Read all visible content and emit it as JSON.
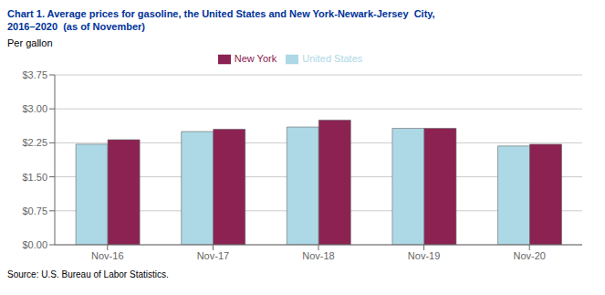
{
  "chart_data": {
    "type": "bar",
    "title": "Chart 1. Average prices for gasoline, the United States and New York-Newark-Jersey  City,",
    "subtitle": "2016–2020  (as of November)",
    "y_label": "Per gallon",
    "source": "Source: U.S. Bureau of Labor Statistics.",
    "categories": [
      "Nov-16",
      "Nov-17",
      "Nov-18",
      "Nov-19",
      "Nov-20"
    ],
    "series": [
      {
        "name": "United States",
        "color": "#ADD8E6",
        "values": [
          2.22,
          2.5,
          2.6,
          2.57,
          2.18
        ]
      },
      {
        "name": "New York",
        "color": "#8B2252",
        "values": [
          2.32,
          2.55,
          2.75,
          2.57,
          2.22
        ]
      }
    ],
    "ylim": [
      0.0,
      3.75
    ],
    "yticks": [
      {
        "value": 0.0,
        "label": "$0.00"
      },
      {
        "value": 0.75,
        "label": "$0.75"
      },
      {
        "value": 1.5,
        "label": "$1.50"
      },
      {
        "value": 2.25,
        "label": "$2.25"
      },
      {
        "value": 3.0,
        "label": "$3.00"
      },
      {
        "value": 3.75,
        "label": "$3.75"
      }
    ],
    "grid": true,
    "legend": "top",
    "title_color": "#003399"
  }
}
